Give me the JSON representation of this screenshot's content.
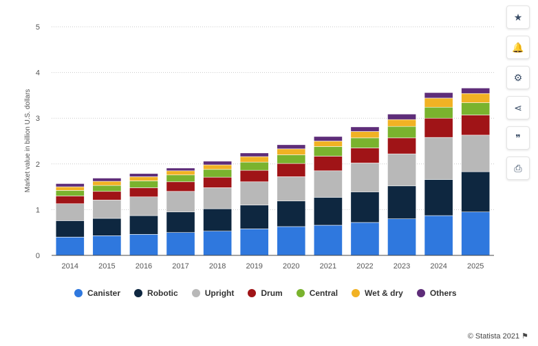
{
  "chart_data": {
    "type": "bar",
    "stacked": true,
    "ylabel": "Market value in billion U.S. dollars",
    "ylim": [
      0,
      5
    ],
    "yticks": [
      0,
      1,
      2,
      3,
      4,
      5
    ],
    "grid": true,
    "legend_position": "bottom",
    "categories": [
      "2014",
      "2015",
      "2016",
      "2017",
      "2018",
      "2019",
      "2020",
      "2021",
      "2022",
      "2023",
      "2024",
      "2025"
    ],
    "series": [
      {
        "name": "Canister",
        "color": "#2f78de",
        "values": [
          0.4,
          0.43,
          0.46,
          0.5,
          0.53,
          0.58,
          0.63,
          0.66,
          0.72,
          0.8,
          0.87,
          0.95
        ]
      },
      {
        "name": "Robotic",
        "color": "#0e2740",
        "values": [
          0.36,
          0.38,
          0.41,
          0.45,
          0.49,
          0.52,
          0.56,
          0.61,
          0.67,
          0.72,
          0.79,
          0.88
        ]
      },
      {
        "name": "Upright",
        "color": "#b8b8b8",
        "values": [
          0.37,
          0.4,
          0.41,
          0.45,
          0.46,
          0.51,
          0.53,
          0.58,
          0.63,
          0.7,
          0.92,
          0.8
        ]
      },
      {
        "name": "Drum",
        "color": "#a01417",
        "values": [
          0.17,
          0.19,
          0.2,
          0.21,
          0.23,
          0.25,
          0.29,
          0.32,
          0.33,
          0.35,
          0.42,
          0.44
        ]
      },
      {
        "name": "Central",
        "color": "#7ab32e",
        "values": [
          0.12,
          0.13,
          0.15,
          0.15,
          0.17,
          0.18,
          0.19,
          0.21,
          0.22,
          0.25,
          0.24,
          0.27
        ]
      },
      {
        "name": "Wet & dry",
        "color": "#f1b224",
        "values": [
          0.08,
          0.09,
          0.09,
          0.09,
          0.1,
          0.12,
          0.13,
          0.12,
          0.14,
          0.15,
          0.2,
          0.2
        ]
      },
      {
        "name": "Others",
        "color": "#5e2d79",
        "values": [
          0.07,
          0.07,
          0.07,
          0.06,
          0.08,
          0.08,
          0.09,
          0.1,
          0.1,
          0.12,
          0.12,
          0.12
        ]
      }
    ]
  },
  "sidebar": [
    {
      "icon": "star-icon",
      "glyph": "★"
    },
    {
      "icon": "bell-icon",
      "glyph": "🔔"
    },
    {
      "icon": "gear-icon",
      "glyph": "⚙"
    },
    {
      "icon": "share-icon",
      "glyph": "⋖"
    },
    {
      "icon": "quote-icon",
      "glyph": "❞"
    },
    {
      "icon": "print-icon",
      "glyph": "⎙"
    }
  ],
  "footer": {
    "copyright": "© Statista 2021",
    "flag_glyph": "⚑"
  }
}
